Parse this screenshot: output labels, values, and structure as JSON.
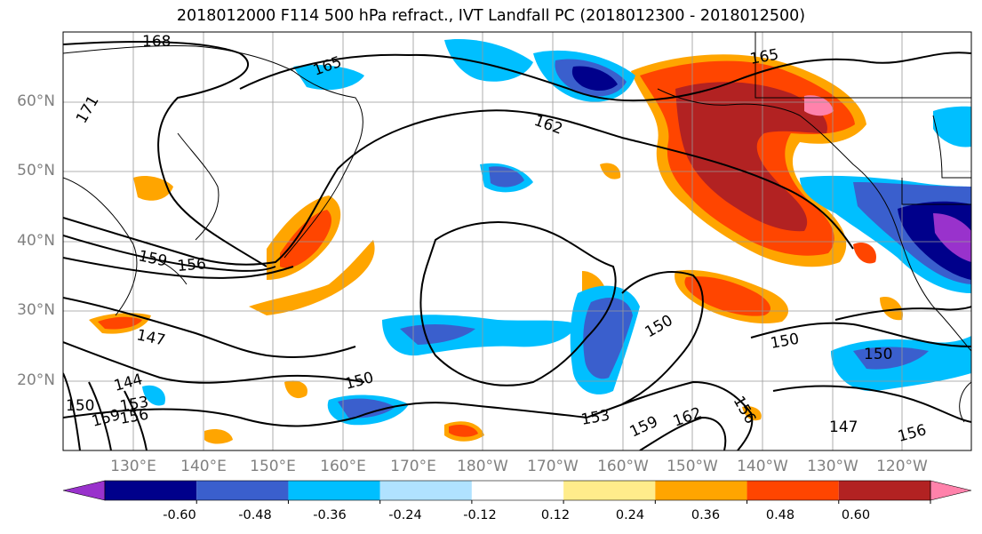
{
  "title": "2018012000 F114 500 hPa refract., IVT Landfall PC (2018012300 - 2018012500)",
  "lat_labels": [
    "60°N",
    "50°N",
    "40°N",
    "30°N",
    "20°N"
  ],
  "lon_labels": [
    "130°E",
    "140°E",
    "150°E",
    "160°E",
    "170°E",
    "180°W",
    "170°W",
    "160°W",
    "150°W",
    "140°W",
    "130°W",
    "120°W"
  ],
  "contour_labels": [
    "168",
    "165",
    "171",
    "162",
    "159",
    "156",
    "147",
    "144",
    "150",
    "153",
    "150",
    "159",
    "162",
    "156",
    "150",
    "147",
    "156",
    "165",
    "150",
    "153",
    "156",
    "159",
    "150"
  ],
  "colorbar": {
    "ticks": [
      "-0.60",
      "-0.48",
      "-0.36",
      "-0.24",
      "-0.12",
      "0.12",
      "0.24",
      "0.36",
      "0.48",
      "0.60"
    ],
    "colors": [
      "#9932cc",
      "#00008b",
      "#3a5fcd",
      "#00bfff",
      "#b0e2ff",
      "#ffffff",
      "#ffec8b",
      "#ffa500",
      "#ff4500",
      "#b22222",
      "#ff82ab"
    ]
  }
}
